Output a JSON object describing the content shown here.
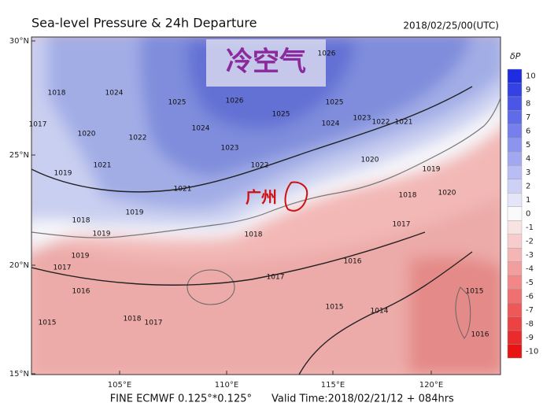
{
  "header": {
    "title": "Sea-level Pressure & 24h Departure",
    "datetime": "2018/02/25/00(UTC)"
  },
  "watermark": "冷空气",
  "city_label": "广州",
  "map": {
    "lat_labels": [
      "30°N",
      "25°N",
      "20°N",
      "15°N"
    ],
    "lon_labels": [
      "105°E",
      "110°E",
      "115°E",
      "120°E"
    ],
    "isobar_labels": [
      "1024",
      "1025",
      "1026",
      "1026",
      "1025",
      "1025",
      "1024",
      "1024",
      "1023",
      "1022",
      "1022",
      "1023",
      "1021",
      "1022",
      "1020",
      "1019",
      "1021",
      "1021",
      "1020",
      "1020",
      "1018",
      "1017",
      "1016",
      "1015",
      "1014",
      "1017",
      "1018",
      "1018",
      "1017",
      "1015",
      "1016",
      "1017",
      "1019",
      "1019",
      "1018",
      "1019",
      "1019",
      "1018",
      "1017",
      "1016",
      "1015"
    ]
  },
  "colorbar": {
    "title": "δP",
    "ticks": [
      10,
      9,
      8,
      7,
      6,
      5,
      4,
      3,
      2,
      1,
      0,
      -1,
      -2,
      -3,
      -4,
      -5,
      -6,
      -7,
      -8,
      -9,
      -10
    ]
  },
  "footer": {
    "model": "FINE ECMWF 0.125°*0.125°",
    "valid": "Valid Time:2018/02/21/12 + 084hrs"
  }
}
